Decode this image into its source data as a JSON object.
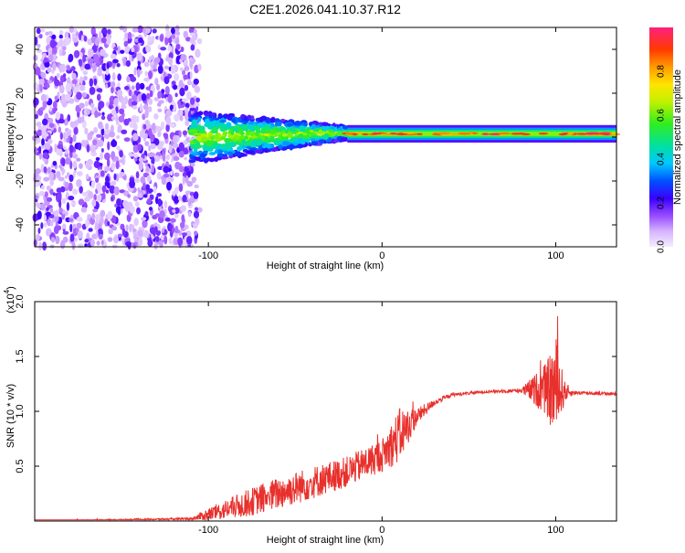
{
  "chart_data": [
    {
      "type": "heatmap",
      "title": "C2E1.2026.041.10.37.R12",
      "xlabel": "Height of straight line (km)",
      "ylabel": "Frequency (Hz)",
      "xlim": [
        -200,
        135
      ],
      "ylim": [
        -50,
        50
      ],
      "xticks": [
        -100,
        0,
        100
      ],
      "yticks": [
        -40,
        -20,
        0,
        20,
        40
      ],
      "colorbar": {
        "label": "Normalized spectral amplitude",
        "range": [
          0,
          1
        ],
        "ticks": [
          0.0,
          0.2,
          0.4,
          0.6,
          0.8
        ]
      },
      "regions": [
        {
          "name": "broadband noise",
          "x": [
            -200,
            -105
          ],
          "freq": [
            -50,
            50
          ],
          "amplitude": 0.15
        },
        {
          "name": "spread signal",
          "x": [
            -110,
            -20
          ],
          "freq": [
            -12,
            10
          ],
          "amplitude": 0.5
        },
        {
          "name": "narrow signal",
          "x": [
            -20,
            135
          ],
          "freq_center": 1.5,
          "width": 3,
          "amplitude": 0.8
        }
      ]
    },
    {
      "type": "line",
      "xlabel": "Height of straight line (km)",
      "ylabel": "SNR (10 * v/v)",
      "scale_label": "(x10",
      "scale_exp": "4",
      "xlim": [
        -200,
        135
      ],
      "ylim": [
        0,
        2.0
      ],
      "xticks": [
        -100,
        0,
        100
      ],
      "yticks": [
        0.5,
        1.0,
        1.5,
        2.0
      ],
      "series": [
        {
          "name": "SNR",
          "color": "#e8302c",
          "envelope": {
            "x": [
              -200,
              -110,
              -100,
              -80,
              -60,
              -40,
              -20,
              0,
              10,
              20,
              30,
              40,
              60,
              80,
              95,
              100,
              105,
              110,
              135
            ],
            "y": [
              0.0,
              0.02,
              0.06,
              0.15,
              0.25,
              0.35,
              0.45,
              0.6,
              0.78,
              0.95,
              1.08,
              1.15,
              1.18,
              1.19,
              1.2,
              1.2,
              1.18,
              1.17,
              1.16
            ],
            "noise": [
              0.005,
              0.01,
              0.06,
              0.12,
              0.15,
              0.15,
              0.14,
              0.15,
              0.25,
              0.08,
              0.03,
              0.015,
              0.012,
              0.02,
              0.25,
              0.5,
              0.1,
              0.02,
              0.012
            ]
          }
        }
      ]
    }
  ],
  "colors": {
    "signal": "#e8302c",
    "axis": "#000000",
    "background": "#ffffff"
  }
}
